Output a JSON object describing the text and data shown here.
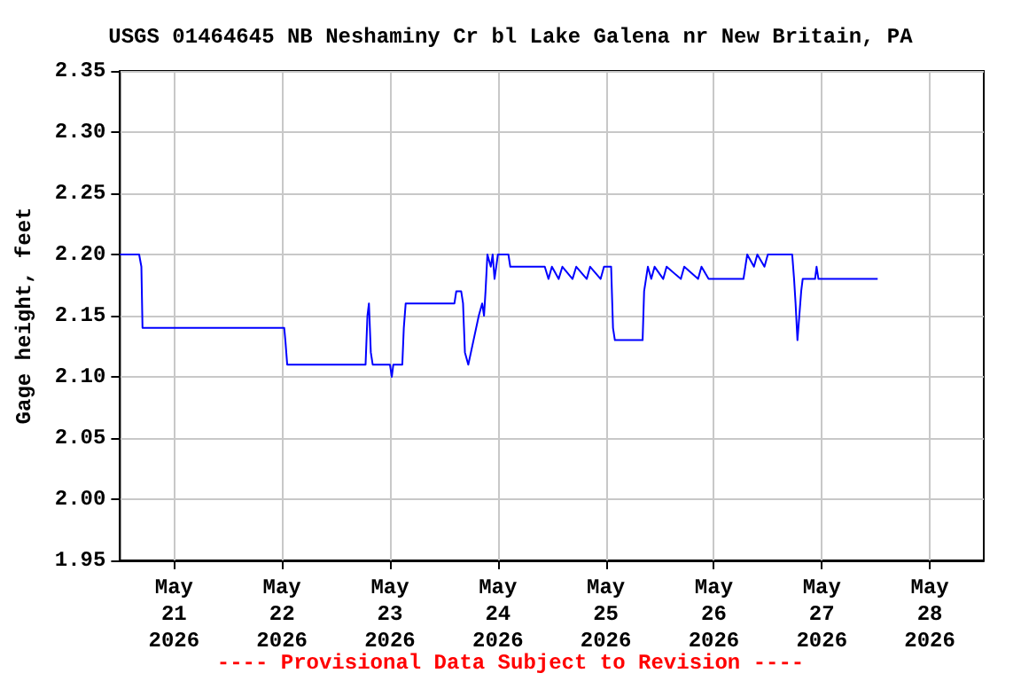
{
  "chart_data": {
    "type": "line",
    "title": "USGS 01464645 NB Neshaminy Cr bl Lake Galena nr New Britain, PA",
    "ylabel": "Gage height, feet",
    "annotations": [
      "---- Provisional Data Subject to Revision ----"
    ],
    "x": [
      "2026-05-20T12:00",
      "2026-05-20T16:15",
      "2026-05-20T16:45",
      "2026-05-20T17:00",
      "2026-05-22T00:30",
      "2026-05-22T00:45",
      "2026-05-22T01:10",
      "2026-05-22T18:35",
      "2026-05-22T19:00",
      "2026-05-22T19:20",
      "2026-05-22T19:45",
      "2026-05-22T20:10",
      "2026-05-23T00:00",
      "2026-05-23T00:25",
      "2026-05-23T00:45",
      "2026-05-23T02:45",
      "2026-05-23T03:05",
      "2026-05-23T03:30",
      "2026-05-23T14:20",
      "2026-05-23T14:45",
      "2026-05-23T15:50",
      "2026-05-23T16:15",
      "2026-05-23T16:40",
      "2026-05-23T17:25",
      "2026-05-23T18:35",
      "2026-05-23T19:45",
      "2026-05-23T20:30",
      "2026-05-23T20:55",
      "2026-05-23T21:15",
      "2026-05-23T21:40",
      "2026-05-23T22:25",
      "2026-05-23T22:50",
      "2026-05-23T23:15",
      "2026-05-24T00:00",
      "2026-05-24T02:20",
      "2026-05-24T02:45",
      "2026-05-24T10:25",
      "2026-05-24T11:15",
      "2026-05-24T12:00",
      "2026-05-24T13:30",
      "2026-05-24T14:20",
      "2026-05-24T16:35",
      "2026-05-24T17:25",
      "2026-05-24T19:45",
      "2026-05-24T20:30",
      "2026-05-24T22:50",
      "2026-05-24T23:35",
      "2026-05-25T01:10",
      "2026-05-25T01:35",
      "2026-05-25T02:00",
      "2026-05-25T08:10",
      "2026-05-25T08:30",
      "2026-05-25T08:55",
      "2026-05-25T09:20",
      "2026-05-25T10:05",
      "2026-05-25T10:50",
      "2026-05-25T12:45",
      "2026-05-25T13:30",
      "2026-05-25T16:40",
      "2026-05-25T17:25",
      "2026-05-25T20:30",
      "2026-05-25T21:15",
      "2026-05-25T22:50",
      "2026-05-26T06:35",
      "2026-05-26T07:00",
      "2026-05-26T07:25",
      "2026-05-26T08:55",
      "2026-05-26T09:40",
      "2026-05-26T11:15",
      "2026-05-26T12:00",
      "2026-05-26T17:25",
      "2026-05-26T17:50",
      "2026-05-26T18:10",
      "2026-05-26T18:35",
      "2026-05-26T19:00",
      "2026-05-26T19:25",
      "2026-05-26T19:45",
      "2026-05-26T22:30",
      "2026-05-26T22:50",
      "2026-05-26T23:15",
      "2026-05-27T12:25"
    ],
    "series": [
      {
        "color": "#0000ff",
        "values": [
          2.2,
          2.2,
          2.19,
          2.14,
          2.14,
          2.13,
          2.11,
          2.11,
          2.15,
          2.16,
          2.12,
          2.11,
          2.11,
          2.1,
          2.11,
          2.11,
          2.14,
          2.16,
          2.16,
          2.17,
          2.17,
          2.16,
          2.12,
          2.11,
          2.13,
          2.15,
          2.16,
          2.15,
          2.17,
          2.2,
          2.19,
          2.2,
          2.18,
          2.2,
          2.2,
          2.19,
          2.19,
          2.18,
          2.19,
          2.18,
          2.19,
          2.18,
          2.19,
          2.18,
          2.19,
          2.18,
          2.19,
          2.19,
          2.14,
          2.13,
          2.13,
          2.17,
          2.18,
          2.19,
          2.18,
          2.19,
          2.18,
          2.19,
          2.18,
          2.19,
          2.18,
          2.19,
          2.18,
          2.18,
          2.19,
          2.2,
          2.19,
          2.2,
          2.19,
          2.2,
          2.2,
          2.18,
          2.16,
          2.13,
          2.15,
          2.17,
          2.18,
          2.18,
          2.19,
          2.18,
          2.18
        ]
      }
    ],
    "xlim": [
      "2026-05-20T12:00",
      "2026-05-28T12:00"
    ],
    "xticks": [
      {
        "value": "2026-05-21",
        "label": "May\n21\n2026"
      },
      {
        "value": "2026-05-22",
        "label": "May\n22\n2026"
      },
      {
        "value": "2026-05-23",
        "label": "May\n23\n2026"
      },
      {
        "value": "2026-05-24",
        "label": "May\n24\n2026"
      },
      {
        "value": "2026-05-25",
        "label": "May\n25\n2026"
      },
      {
        "value": "2026-05-26",
        "label": "May\n26\n2026"
      },
      {
        "value": "2026-05-27",
        "label": "May\n27\n2026"
      },
      {
        "value": "2026-05-28",
        "label": "May\n28\n2026"
      }
    ],
    "ylim": [
      1.95,
      2.35
    ],
    "yticks": [
      {
        "value": 1.95,
        "label": "1.95"
      },
      {
        "value": 2.0,
        "label": "2.00"
      },
      {
        "value": 2.05,
        "label": "2.05"
      },
      {
        "value": 2.1,
        "label": "2.10"
      },
      {
        "value": 2.15,
        "label": "2.15"
      },
      {
        "value": 2.2,
        "label": "2.20"
      },
      {
        "value": 2.25,
        "label": "2.25"
      },
      {
        "value": 2.3,
        "label": "2.30"
      },
      {
        "value": 2.35,
        "label": "2.35"
      }
    ],
    "grid": true,
    "marker": "none",
    "line_style": "solid"
  }
}
